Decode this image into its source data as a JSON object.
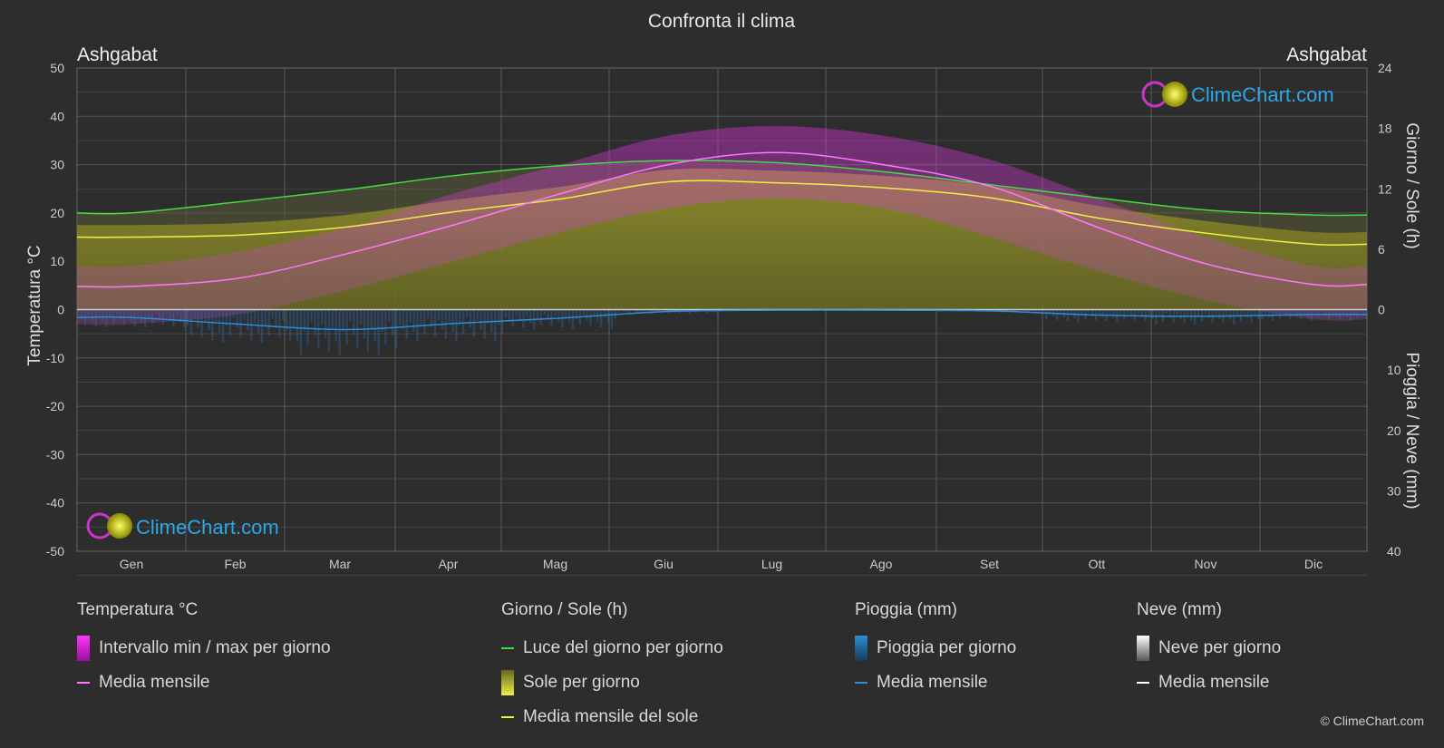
{
  "title": "Confronta il clima",
  "location_left": "Ashgabat",
  "location_right": "Ashgabat",
  "brand": "ClimeChart.com",
  "copyright": "© ClimeChart.com",
  "axis": {
    "left_label": "Temperatura °C",
    "right_top_label": "Giorno / Sole (h)",
    "right_bottom_label": "Pioggia / Neve (mm)"
  },
  "chart_data": {
    "type": "line",
    "categories": [
      "Gen",
      "Feb",
      "Mar",
      "Apr",
      "Mag",
      "Giu",
      "Lug",
      "Ago",
      "Set",
      "Ott",
      "Nov",
      "Dic"
    ],
    "temp_ylim": [
      -50,
      50
    ],
    "temp_ticks": [
      50,
      40,
      30,
      20,
      10,
      0,
      -10,
      -20,
      -30,
      -40,
      -50
    ],
    "sun_ylim": [
      0,
      24
    ],
    "sun_ticks": [
      24,
      18,
      12,
      6,
      0
    ],
    "precip_ylim": [
      0,
      40
    ],
    "precip_ticks": [
      0,
      10,
      20,
      30,
      40
    ],
    "series": [
      {
        "name": "Media mensile",
        "kind": "temp_mean",
        "color": "#ff77ff",
        "values": [
          4.8,
          6.5,
          11.5,
          17.5,
          24.0,
          30.0,
          32.5,
          30.0,
          25.5,
          17.0,
          9.5,
          5.2
        ]
      },
      {
        "name": "Luce del giorno per giorno",
        "kind": "daylight",
        "color": "#44dd44",
        "values": [
          9.6,
          10.7,
          11.9,
          13.3,
          14.3,
          14.8,
          14.6,
          13.7,
          12.4,
          11.1,
          9.9,
          9.4
        ]
      },
      {
        "name": "Media mensile del sole",
        "kind": "sun_mean",
        "color": "#eeee44",
        "values": [
          7.2,
          7.4,
          8.2,
          9.7,
          11.0,
          12.7,
          12.6,
          12.1,
          11.1,
          9.1,
          7.6,
          6.5
        ]
      },
      {
        "name": "Media mensile",
        "kind": "rain_mean",
        "color": "#2a8fd8",
        "values": [
          1.3,
          2.4,
          3.3,
          2.3,
          1.4,
          0.3,
          0.1,
          0.1,
          0.2,
          0.9,
          1.1,
          0.8
        ]
      },
      {
        "name": "Media mensile",
        "kind": "snow_mean",
        "color": "#ffffff",
        "values": [
          0,
          0,
          0,
          0,
          0,
          0,
          0,
          0,
          0,
          0,
          0,
          0
        ]
      }
    ],
    "temp_range": {
      "name": "Intervallo min / max per giorno",
      "max": [
        9,
        12,
        17,
        24,
        30,
        36,
        38,
        36,
        31,
        23,
        15,
        9
      ],
      "min": [
        -3,
        -1,
        4,
        10,
        16,
        21,
        23,
        21,
        15,
        8,
        2,
        -2
      ]
    }
  },
  "legend": {
    "temp": {
      "title": "Temperatura °C",
      "items": [
        "Intervallo min / max per giorno",
        "Media mensile"
      ]
    },
    "sun": {
      "title": "Giorno / Sole (h)",
      "items": [
        "Luce del giorno per giorno",
        "Sole per giorno",
        "Media mensile del sole"
      ]
    },
    "rain": {
      "title": "Pioggia (mm)",
      "items": [
        "Pioggia per giorno",
        "Media mensile"
      ]
    },
    "snow": {
      "title": "Neve (mm)",
      "items": [
        "Neve per giorno",
        "Media mensile"
      ]
    }
  },
  "colors": {
    "background": "#2d2d2d",
    "temp_range": "#e020e0",
    "sun_fill": "#8a8a20",
    "rain": "#2a8fd8",
    "snow": "#ffffff"
  }
}
